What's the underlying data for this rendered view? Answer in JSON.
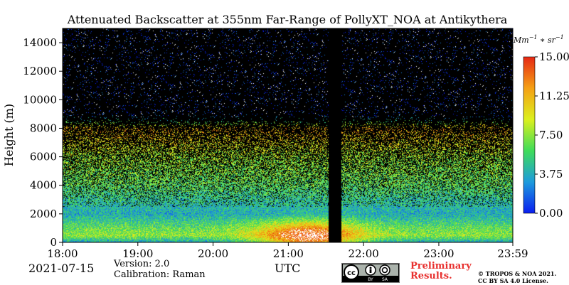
{
  "chart_data": {
    "type": "heatmap",
    "title": "Attenuated Backscatter at 355nm Far-Range of PollyXT_NOA at Antikythera",
    "ylabel": "Height (m)",
    "xlabel": "UTC",
    "x_ticks": [
      "18:00",
      "19:00",
      "20:00",
      "21:00",
      "22:00",
      "23:00",
      "23:59"
    ],
    "x_range": [
      "18:00",
      "23:59"
    ],
    "y_ticks": [
      0,
      2000,
      4000,
      6000,
      8000,
      10000,
      12000,
      14000
    ],
    "ylim": [
      0,
      15000
    ],
    "colorbar": {
      "unit": "Mm^-1 * sr^-1",
      "ticks": [
        "0.00",
        "3.75",
        "7.50",
        "11.25",
        "15.00"
      ],
      "range": [
        0,
        15
      ],
      "colormap": [
        "#0a1ef0",
        "#1e9bdc",
        "#3fdc5a",
        "#dcf01e",
        "#f5a014",
        "#e62814"
      ]
    },
    "data_gap": {
      "start": "21:32",
      "end": "21:42"
    },
    "profile": [
      {
        "height": 0,
        "value": 3.2
      },
      {
        "height": 500,
        "value": 7.6
      },
      {
        "height": 1000,
        "value": 6.5
      },
      {
        "height": 2000,
        "value": 3.8
      },
      {
        "height": 3000,
        "value": 4.8
      },
      {
        "height": 4000,
        "value": 6.2
      },
      {
        "height": 6000,
        "value": 7.8
      },
      {
        "height": 8000,
        "value": 11.5
      },
      {
        "height": 9000,
        "value": 0.3
      },
      {
        "height": 15000,
        "value": 0.2
      }
    ],
    "aerosol_peak": {
      "time": "21:15",
      "height": 500,
      "value": 15
    }
  },
  "footer": {
    "date": "2021-07-15",
    "version": "Version: 2.0",
    "calibration": "Calibration: Raman",
    "utc_label": "UTC",
    "license_icon": "cc-by-sa-icon",
    "preliminary": "Preliminary Results.",
    "copyright_line1": "© TROPOS & NOA 2021.",
    "copyright_line2": "CC BY SA 4.0 License."
  }
}
